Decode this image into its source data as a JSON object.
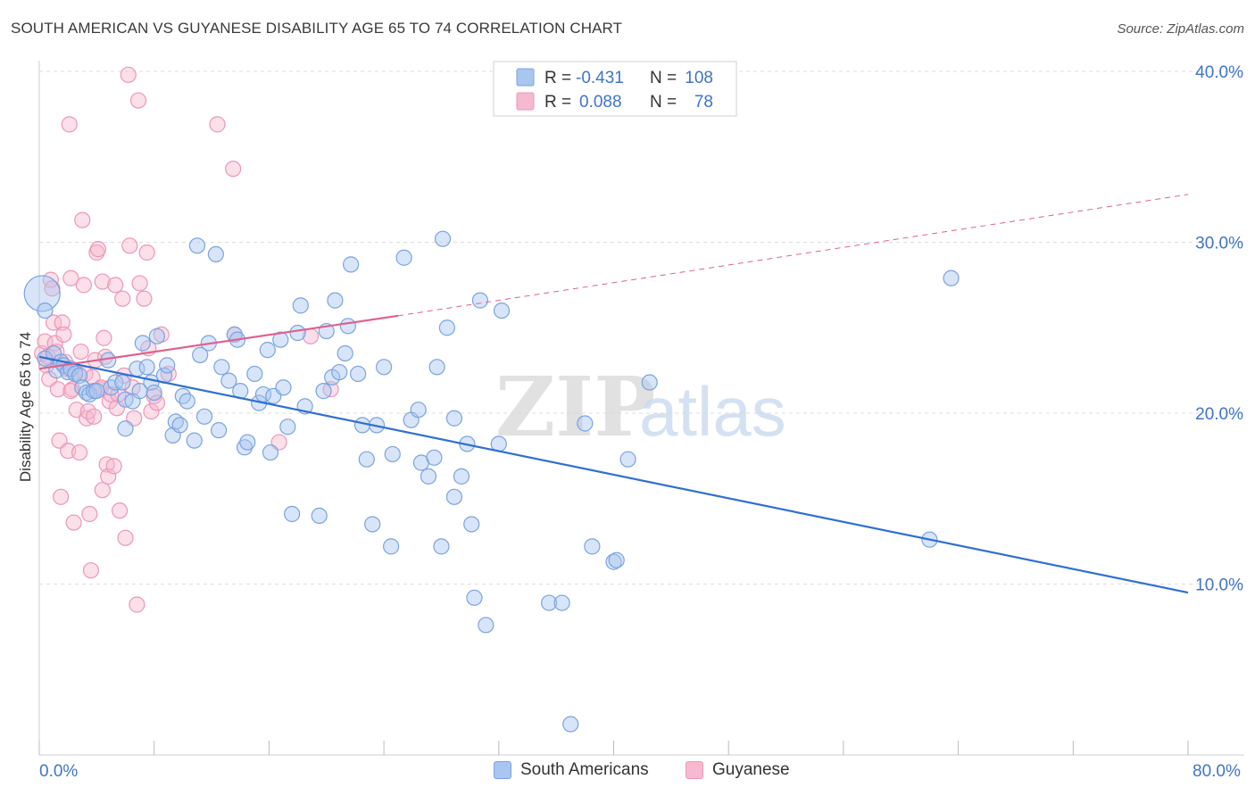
{
  "title": "SOUTH AMERICAN VS GUYANESE DISABILITY AGE 65 TO 74 CORRELATION CHART",
  "source": "Source: ZipAtlas.com",
  "watermark": {
    "zip": "ZIP",
    "atlas": "atlas"
  },
  "colors": {
    "blue_fill": "#a9c6f0",
    "blue_stroke": "#7aa3e0",
    "blue_line": "#2f6fd0",
    "pink_fill": "#f7b9cf",
    "pink_stroke": "#ec97b5",
    "pink_line": "#e0608e",
    "axis_text": "#3f74c9",
    "grid": "#dddddd"
  },
  "legend": {
    "r_label": "R =",
    "n_label": "N =",
    "rows": [
      {
        "r": "-0.431",
        "n": "108"
      },
      {
        "r": "0.088",
        "n": "78"
      }
    ]
  },
  "chart_data": {
    "type": "scatter",
    "title": "SOUTH AMERICAN VS GUYANESE DISABILITY AGE 65 TO 74 CORRELATION CHART",
    "xlabel": "",
    "ylabel": "Disability Age 65 to 74",
    "xlim": [
      0,
      80
    ],
    "ylim": [
      0,
      40
    ],
    "x_tick_labels": [
      "0.0%",
      "80.0%"
    ],
    "y_ticks": [
      10,
      20,
      30,
      40
    ],
    "y_tick_labels": [
      "10.0%",
      "20.0%",
      "30.0%",
      "40.0%"
    ],
    "grid": true,
    "legend_position": "top-center",
    "series": [
      {
        "name": "South Americans",
        "color": "#a9c6f0",
        "points": [
          [
            0.2,
            27
          ],
          [
            0.4,
            26
          ],
          [
            0.4,
            23.2
          ],
          [
            1,
            23.5
          ],
          [
            1.2,
            22.5
          ],
          [
            1.5,
            23
          ],
          [
            1.7,
            22.8
          ],
          [
            2,
            22.4
          ],
          [
            2.2,
            22.6
          ],
          [
            2.5,
            22.3
          ],
          [
            2.8,
            22.2
          ],
          [
            3,
            21.5
          ],
          [
            3.3,
            21.2
          ],
          [
            3.5,
            21.1
          ],
          [
            3.8,
            21.3
          ],
          [
            4,
            21.3
          ],
          [
            4.8,
            23.1
          ],
          [
            5,
            21.5
          ],
          [
            5.3,
            21.8
          ],
          [
            5.8,
            21.8
          ],
          [
            6,
            20.8
          ],
          [
            6,
            19.1
          ],
          [
            6.5,
            20.7
          ],
          [
            6.8,
            22.6
          ],
          [
            7,
            21.3
          ],
          [
            7.2,
            24.1
          ],
          [
            7.5,
            22.7
          ],
          [
            7.8,
            21.8
          ],
          [
            8,
            21.2
          ],
          [
            8.2,
            24.5
          ],
          [
            8.7,
            22.2
          ],
          [
            8.9,
            22.8
          ],
          [
            9.3,
            18.7
          ],
          [
            9.5,
            19.5
          ],
          [
            9.8,
            19.3
          ],
          [
            10,
            21
          ],
          [
            10.3,
            20.7
          ],
          [
            10.8,
            18.4
          ],
          [
            11,
            29.8
          ],
          [
            11.2,
            23.4
          ],
          [
            11.5,
            19.8
          ],
          [
            11.8,
            24.1
          ],
          [
            12.3,
            29.3
          ],
          [
            12.5,
            19
          ],
          [
            12.7,
            22.7
          ],
          [
            13.2,
            21.9
          ],
          [
            13.6,
            24.6
          ],
          [
            13.8,
            24.3
          ],
          [
            14,
            21.3
          ],
          [
            14.3,
            18
          ],
          [
            14.5,
            18.3
          ],
          [
            15,
            22.3
          ],
          [
            15.3,
            20.6
          ],
          [
            15.6,
            21.1
          ],
          [
            15.9,
            23.7
          ],
          [
            16.1,
            17.7
          ],
          [
            16.3,
            21
          ],
          [
            16.8,
            24.3
          ],
          [
            17,
            21.5
          ],
          [
            17.3,
            19.2
          ],
          [
            17.6,
            14.1
          ],
          [
            18,
            24.7
          ],
          [
            18.2,
            26.3
          ],
          [
            18.5,
            20.4
          ],
          [
            19.5,
            14
          ],
          [
            19.8,
            21.3
          ],
          [
            20,
            24.8
          ],
          [
            20.4,
            22.1
          ],
          [
            20.6,
            26.6
          ],
          [
            20.9,
            22.4
          ],
          [
            21.3,
            23.5
          ],
          [
            21.5,
            25.1
          ],
          [
            21.7,
            28.7
          ],
          [
            22.2,
            22.3
          ],
          [
            22.5,
            19.3
          ],
          [
            22.8,
            17.3
          ],
          [
            23.2,
            13.5
          ],
          [
            23.5,
            19.3
          ],
          [
            24,
            22.7
          ],
          [
            24.5,
            12.2
          ],
          [
            24.6,
            17.6
          ],
          [
            25.4,
            29.1
          ],
          [
            25.9,
            19.6
          ],
          [
            26.4,
            20.2
          ],
          [
            26.6,
            17.1
          ],
          [
            27.1,
            16.3
          ],
          [
            27.5,
            17.4
          ],
          [
            27.7,
            22.7
          ],
          [
            28,
            12.2
          ],
          [
            28.1,
            30.2
          ],
          [
            28.4,
            25
          ],
          [
            28.9,
            15.1
          ],
          [
            28.9,
            19.7
          ],
          [
            29.4,
            16.3
          ],
          [
            29.8,
            18.2
          ],
          [
            30.1,
            13.5
          ],
          [
            30.3,
            9.2
          ],
          [
            30.7,
            26.6
          ],
          [
            31.1,
            7.6
          ],
          [
            32,
            18.2
          ],
          [
            32.2,
            26
          ],
          [
            35.5,
            8.9
          ],
          [
            36.4,
            8.9
          ],
          [
            38,
            19.4
          ],
          [
            38.5,
            12.2
          ],
          [
            40,
            11.3
          ],
          [
            40.2,
            11.4
          ],
          [
            41,
            17.3
          ],
          [
            42.5,
            21.8
          ],
          [
            62,
            12.6
          ],
          [
            63.5,
            27.9
          ],
          [
            37,
            1.8
          ]
        ]
      },
      {
        "name": "Guyanese",
        "color": "#f7b9cf",
        "points": [
          [
            0.2,
            23.5
          ],
          [
            0.4,
            24.2
          ],
          [
            0.5,
            22.8
          ],
          [
            0.6,
            23.3
          ],
          [
            0.7,
            22
          ],
          [
            0.8,
            27.8
          ],
          [
            0.9,
            27.3
          ],
          [
            1,
            25.3
          ],
          [
            1.1,
            24.1
          ],
          [
            1.2,
            23.6
          ],
          [
            1.3,
            21.4
          ],
          [
            1.4,
            18.4
          ],
          [
            1.5,
            15.1
          ],
          [
            1.6,
            25.3
          ],
          [
            1.7,
            24.6
          ],
          [
            1.8,
            23
          ],
          [
            1.9,
            22.6
          ],
          [
            2,
            17.8
          ],
          [
            2.1,
            36.9
          ],
          [
            2.2,
            27.9
          ],
          [
            2.3,
            21.4
          ],
          [
            2.4,
            13.6
          ],
          [
            2.5,
            22.4
          ],
          [
            2.6,
            20.2
          ],
          [
            2.8,
            17.7
          ],
          [
            2.9,
            23.6
          ],
          [
            3,
            31.3
          ],
          [
            3.1,
            27.5
          ],
          [
            3.2,
            22.3
          ],
          [
            3.3,
            19.7
          ],
          [
            3.4,
            20.1
          ],
          [
            3.5,
            14.1
          ],
          [
            3.6,
            10.8
          ],
          [
            3.7,
            22.1
          ],
          [
            3.8,
            19.8
          ],
          [
            3.9,
            23.1
          ],
          [
            4,
            29.4
          ],
          [
            4.1,
            29.6
          ],
          [
            4.2,
            21.4
          ],
          [
            4.3,
            21.5
          ],
          [
            4.4,
            27.7
          ],
          [
            4.5,
            24.4
          ],
          [
            4.6,
            23.3
          ],
          [
            4.7,
            17
          ],
          [
            4.8,
            16.3
          ],
          [
            4.9,
            20.7
          ],
          [
            5,
            21.1
          ],
          [
            5.2,
            16.9
          ],
          [
            5.3,
            27.5
          ],
          [
            5.4,
            20.3
          ],
          [
            5.5,
            21.1
          ],
          [
            5.6,
            14.3
          ],
          [
            5.8,
            26.7
          ],
          [
            5.9,
            22.2
          ],
          [
            6,
            12.7
          ],
          [
            6.2,
            39.8
          ],
          [
            6.3,
            29.8
          ],
          [
            6.5,
            21.5
          ],
          [
            6.6,
            19.7
          ],
          [
            6.8,
            8.8
          ],
          [
            6.9,
            38.3
          ],
          [
            7,
            27.6
          ],
          [
            7.3,
            26.7
          ],
          [
            7.5,
            29.4
          ],
          [
            7.6,
            23.8
          ],
          [
            7.8,
            20.1
          ],
          [
            8,
            21
          ],
          [
            8.2,
            20.6
          ],
          [
            8.5,
            24.6
          ],
          [
            9,
            22.3
          ],
          [
            12.4,
            36.9
          ],
          [
            13.5,
            34.3
          ],
          [
            13.6,
            24.6
          ],
          [
            16.7,
            18.3
          ],
          [
            18.9,
            24.5
          ],
          [
            20.3,
            21.4
          ],
          [
            4.4,
            15.5
          ],
          [
            2.2,
            21.3
          ]
        ]
      }
    ],
    "trend_lines": [
      {
        "series": "South Americans",
        "x": [
          0,
          80
        ],
        "y": [
          23.3,
          9.5
        ]
      },
      {
        "series": "Guyanese",
        "x": [
          0,
          25,
          80
        ],
        "y": [
          22.6,
          25.7,
          32.8
        ]
      }
    ]
  },
  "bottom_legend": [
    {
      "label": "South Americans"
    },
    {
      "label": "Guyanese"
    }
  ]
}
